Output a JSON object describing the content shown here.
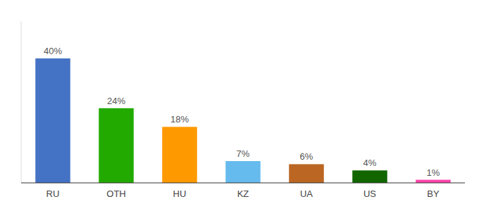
{
  "chart_data": {
    "type": "bar",
    "categories": [
      "RU",
      "OTH",
      "HU",
      "KZ",
      "UA",
      "US",
      "BY"
    ],
    "values": [
      40,
      24,
      18,
      7,
      6,
      4,
      1
    ],
    "value_labels": [
      "40%",
      "24%",
      "18%",
      "7%",
      "6%",
      "4%",
      "1%"
    ],
    "colors": [
      "#4472C4",
      "#22AA00",
      "#FF9900",
      "#66BBEE",
      "#BB6622",
      "#116600",
      "#FF44AA"
    ],
    "ylim": [
      0,
      52
    ],
    "data_labels": true,
    "tick_labels": "x",
    "grid": false
  }
}
